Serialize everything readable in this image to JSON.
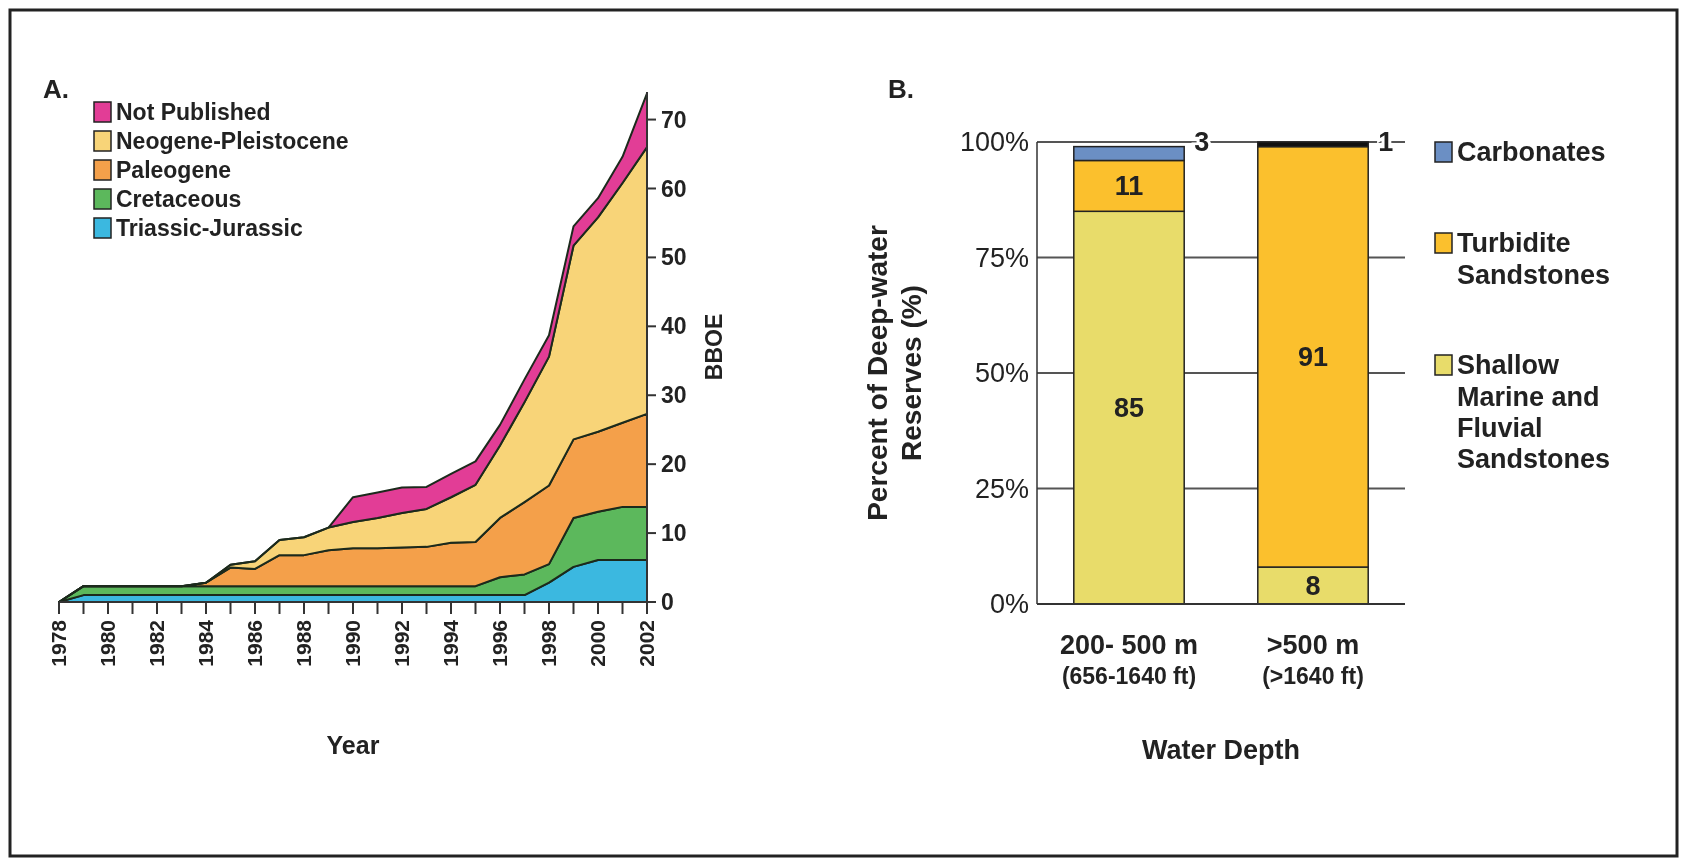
{
  "chart_data": [
    {
      "type": "area",
      "stacked": true,
      "title": "A.",
      "xlabel": "Year",
      "ylabel": "BBOE",
      "legend": "top left",
      "x": [
        1978,
        1979,
        1980,
        1981,
        1982,
        1983,
        1984,
        1985,
        1986,
        1987,
        1988,
        1989,
        1990,
        1991,
        1992,
        1993,
        1994,
        1995,
        1996,
        1997,
        1998,
        1999,
        2000,
        2001,
        2002
      ],
      "xlim": [
        1978,
        2002
      ],
      "xticks": [
        1978,
        {
          "value": 1979,
          "label": null
        },
        1980,
        {
          "value": 1981,
          "label": null
        },
        1982,
        {
          "value": 1983,
          "label": null
        },
        1984,
        {
          "value": 1985,
          "label": null
        },
        1986,
        {
          "value": 1987,
          "label": null
        },
        1988,
        {
          "value": 1989,
          "label": null
        },
        1990,
        {
          "value": 1991,
          "label": null
        },
        1992,
        {
          "value": 1993,
          "label": null
        },
        1994,
        {
          "value": 1995,
          "label": null
        },
        1996,
        {
          "value": 1997,
          "label": null
        },
        1998,
        {
          "value": 1999,
          "label": null
        },
        2000,
        {
          "value": 2001,
          "label": null
        },
        2002
      ],
      "ylim": [
        0,
        74
      ],
      "yticks": [
        0,
        10,
        20,
        30,
        40,
        50,
        60,
        70
      ],
      "series": [
        {
          "name": "Triassic-Jurassic",
          "color": "#3bb8e0",
          "values": [
            0,
            1,
            1,
            1,
            1,
            1,
            1,
            1,
            1,
            1,
            1,
            1,
            1,
            1,
            1,
            1,
            1,
            1,
            1,
            1,
            2.8,
            5.1,
            6.1,
            6.1,
            6.1
          ]
        },
        {
          "name": "Cretaceous",
          "color": "#5cb85c",
          "values": [
            0,
            1.3,
            1.3,
            1.3,
            1.3,
            1.3,
            1.3,
            1.3,
            1.3,
            1.3,
            1.3,
            1.3,
            1.3,
            1.3,
            1.3,
            1.3,
            1.3,
            1.3,
            2.6,
            3.0,
            2.7,
            7.1,
            7.0,
            7.7,
            7.7
          ]
        },
        {
          "name": "Paleogene",
          "color": "#f4a04a",
          "values": [
            0,
            0,
            0,
            0,
            0,
            0,
            0.5,
            2.7,
            2.5,
            4.5,
            4.5,
            5.2,
            5.5,
            5.5,
            5.6,
            5.7,
            6.3,
            6.4,
            8.6,
            10.5,
            11.4,
            11.4,
            11.6,
            12.2,
            13.5
          ]
        },
        {
          "name": "Neogene-Pleistocene",
          "color": "#f8d478",
          "values": [
            0,
            0,
            0,
            0,
            0,
            0,
            0,
            0.4,
            1.1,
            2.2,
            2.6,
            3.3,
            3.8,
            4.4,
            5.0,
            5.5,
            6.6,
            8.3,
            10.5,
            14.5,
            18.7,
            28.1,
            31.1,
            34.8,
            38.7
          ]
        },
        {
          "name": "Not Published",
          "color": "#e23d96",
          "values": [
            0,
            0,
            0,
            0,
            0,
            0,
            0,
            0,
            0,
            0,
            0,
            0,
            3.6,
            3.7,
            3.7,
            3.2,
            3.4,
            3.4,
            3.0,
            3.3,
            3.1,
            2.8,
            2.8,
            3.8,
            7.8
          ]
        }
      ]
    },
    {
      "type": "bar",
      "stacked": true,
      "title": "B.",
      "xlabel": "Water Depth",
      "ylabel": "Percent of Deep-water Reserves (%)",
      "legend": "right",
      "grid": "y",
      "data_labels": true,
      "categories": [
        "200- 500 m\n(656-1640 ft)",
        ">500 m\n(>1640 ft)"
      ],
      "ylim": [
        0,
        100
      ],
      "yticks": [
        {
          "value": 0,
          "label": "0%"
        },
        {
          "value": 25,
          "label": "25%"
        },
        {
          "value": 50,
          "label": "50%"
        },
        {
          "value": 75,
          "label": "75%"
        },
        {
          "value": 100,
          "label": "100%"
        }
      ],
      "series": [
        {
          "name": "Shallow Marine and Fluvial Sandstones",
          "color": "#e8dc6a",
          "values": [
            85,
            8
          ]
        },
        {
          "name": "Turbidite Sandstones",
          "color": "#fbc02d",
          "values": [
            11,
            91
          ]
        },
        {
          "name": "Carbonates",
          "color": "#6b8fc4",
          "colors": [
            "#6b8fc4",
            "#111111"
          ],
          "values": [
            3,
            1
          ]
        }
      ]
    }
  ]
}
